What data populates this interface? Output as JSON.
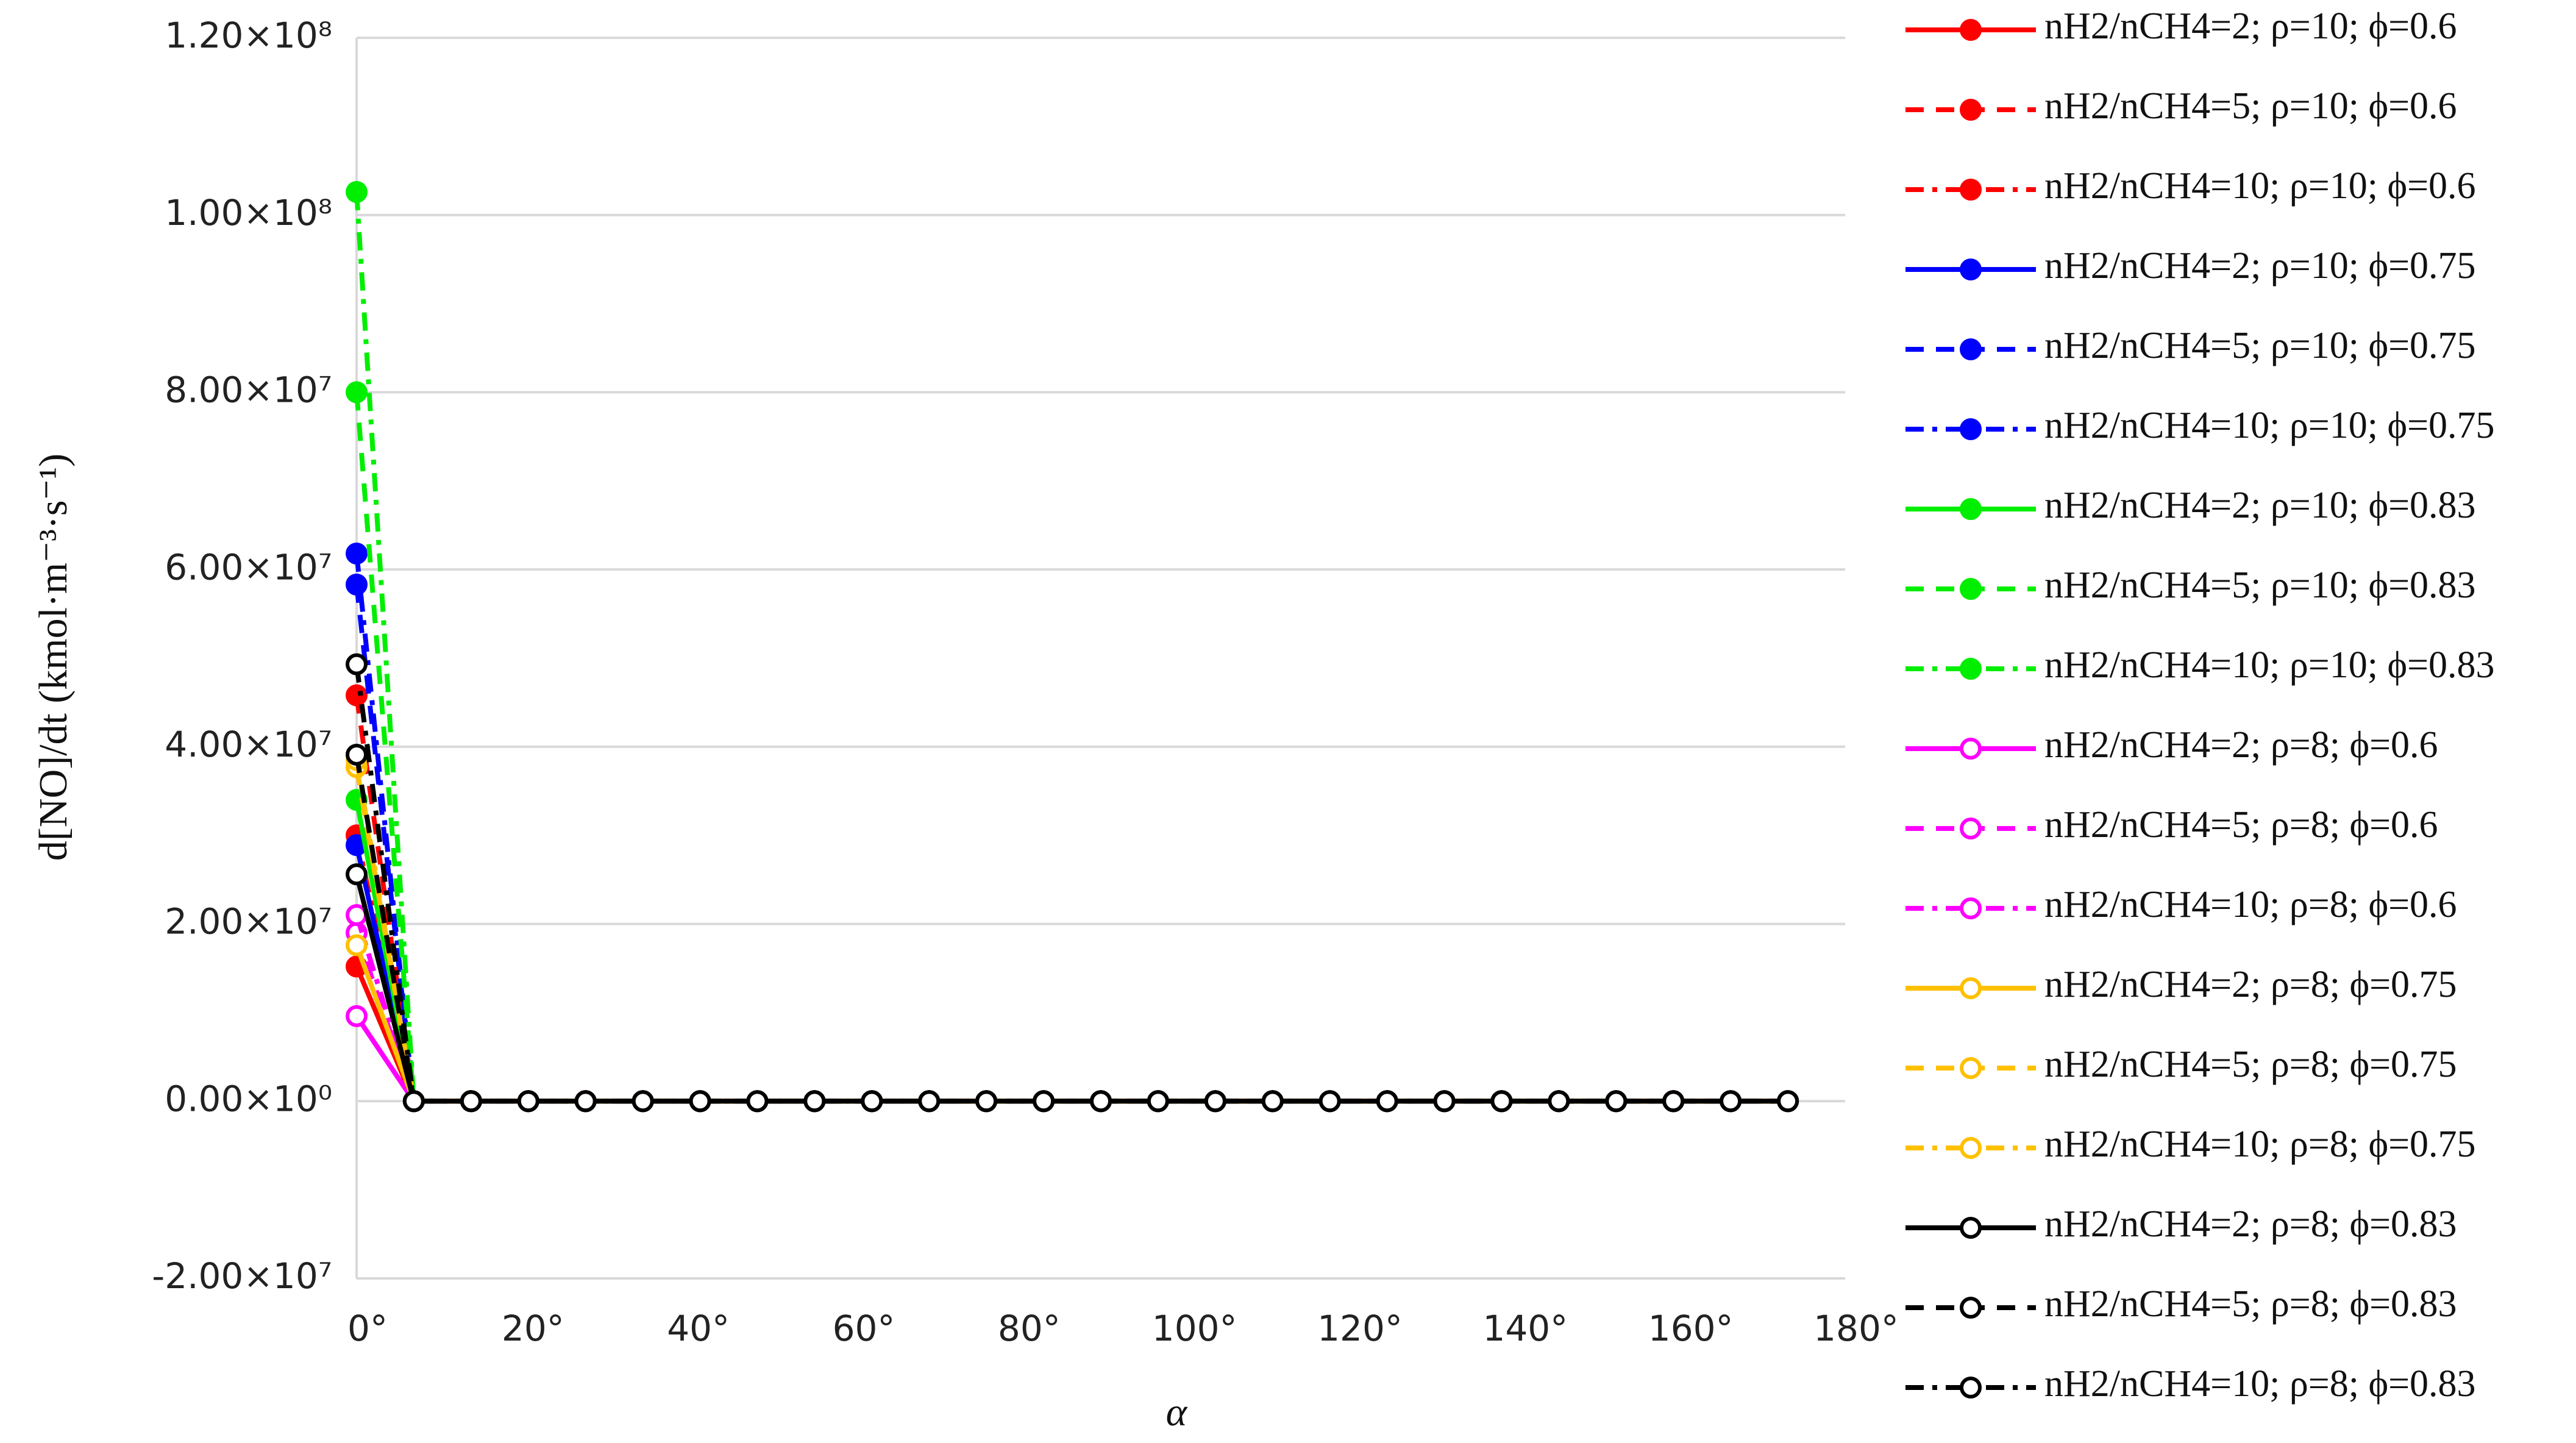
{
  "chart_data": {
    "type": "line",
    "x_label": "α",
    "y_label": "d[NO]/dt (kmol·m⁻³·s⁻¹)",
    "x": [
      0,
      6.92,
      13.85,
      20.77,
      27.69,
      34.62,
      41.54,
      48.46,
      55.38,
      62.31,
      69.23,
      76.15,
      83.08,
      90,
      96.92,
      103.85,
      110.77,
      117.69,
      124.62,
      131.54,
      138.46,
      145.38,
      152.31,
      159.23,
      166.15,
      173.08
    ],
    "xlim": [
      0,
      180
    ],
    "xticks": [
      {
        "value": 0,
        "label": "0°"
      },
      {
        "value": 20,
        "label": "20°"
      },
      {
        "value": 40,
        "label": "40°"
      },
      {
        "value": 60,
        "label": "60°"
      },
      {
        "value": 80,
        "label": "80°"
      },
      {
        "value": 100,
        "label": "100°"
      },
      {
        "value": 120,
        "label": "120°"
      },
      {
        "value": 140,
        "label": "140°"
      },
      {
        "value": 160,
        "label": "160°"
      },
      {
        "value": 180,
        "label": "180°"
      }
    ],
    "ylim": [
      -20000000,
      120000000
    ],
    "yticks": [
      {
        "value": -20000000,
        "label": "-2.00×10⁷"
      },
      {
        "value": 0,
        "label": "0.00×10⁰"
      },
      {
        "value": 20000000,
        "label": "2.00×10⁷"
      },
      {
        "value": 40000000,
        "label": "4.00×10⁷"
      },
      {
        "value": 60000000,
        "label": "6.00×10⁷"
      },
      {
        "value": 80000000,
        "label": "8.00×10⁷"
      },
      {
        "value": 100000000,
        "label": "1.00×10⁸"
      },
      {
        "value": 120000000,
        "label": "1.20×10⁸"
      }
    ],
    "grid": true,
    "legend": "right",
    "series": [
      {
        "name": "nH2/nCH4=2; ρ=10; ϕ=0.6",
        "color": "#ff0000",
        "dash": "solid",
        "marker": "filled",
        "values": [
          15200000,
          0,
          0,
          0,
          0,
          0,
          0,
          0,
          0,
          0,
          0,
          0,
          0,
          0,
          0,
          0,
          0,
          0,
          0,
          0,
          0,
          0,
          0,
          0,
          0,
          0
        ]
      },
      {
        "name": "nH2/nCH4=5; ρ=10; ϕ=0.6",
        "color": "#ff0000",
        "dash": "dash",
        "marker": "filled",
        "values": [
          45800000,
          0,
          0,
          0,
          0,
          0,
          0,
          0,
          0,
          0,
          0,
          0,
          0,
          0,
          0,
          0,
          0,
          0,
          0,
          0,
          0,
          0,
          0,
          0,
          0,
          0
        ]
      },
      {
        "name": "nH2/nCH4=10; ρ=10; ϕ=0.6",
        "color": "#ff0000",
        "dash": "dashdot",
        "marker": "filled",
        "values": [
          30000000,
          0,
          0,
          0,
          0,
          0,
          0,
          0,
          0,
          0,
          0,
          0,
          0,
          0,
          0,
          0,
          0,
          0,
          0,
          0,
          0,
          0,
          0,
          0,
          0,
          0
        ]
      },
      {
        "name": "nH2/nCH4=2; ρ=10; ϕ=0.75",
        "color": "#0000ff",
        "dash": "solid",
        "marker": "filled",
        "values": [
          28900000,
          0,
          0,
          0,
          0,
          0,
          0,
          0,
          0,
          0,
          0,
          0,
          0,
          0,
          0,
          0,
          0,
          0,
          0,
          0,
          0,
          0,
          0,
          0,
          0,
          0
        ]
      },
      {
        "name": "nH2/nCH4=5; ρ=10; ϕ=0.75",
        "color": "#0000ff",
        "dash": "dash",
        "marker": "filled",
        "values": [
          58300000,
          0,
          0,
          0,
          0,
          0,
          0,
          0,
          0,
          0,
          0,
          0,
          0,
          0,
          0,
          0,
          0,
          0,
          0,
          0,
          0,
          0,
          0,
          0,
          0,
          0
        ]
      },
      {
        "name": "nH2/nCH4=10; ρ=10; ϕ=0.75",
        "color": "#0000ff",
        "dash": "dashdot",
        "marker": "filled",
        "values": [
          61800000,
          0,
          0,
          0,
          0,
          0,
          0,
          0,
          0,
          0,
          0,
          0,
          0,
          0,
          0,
          0,
          0,
          0,
          0,
          0,
          0,
          0,
          0,
          0,
          0,
          0
        ]
      },
      {
        "name": "nH2/nCH4=2; ρ=10; ϕ=0.83",
        "color": "#00ee00",
        "dash": "solid",
        "marker": "filled",
        "values": [
          34000000,
          0,
          0,
          0,
          0,
          0,
          0,
          0,
          0,
          0,
          0,
          0,
          0,
          0,
          0,
          0,
          0,
          0,
          0,
          0,
          0,
          0,
          0,
          0,
          0,
          0
        ]
      },
      {
        "name": "nH2/nCH4=5; ρ=10; ϕ=0.83",
        "color": "#00ee00",
        "dash": "dash",
        "marker": "filled",
        "values": [
          80000000,
          0,
          0,
          0,
          0,
          0,
          0,
          0,
          0,
          0,
          0,
          0,
          0,
          0,
          0,
          0,
          0,
          0,
          0,
          0,
          0,
          0,
          0,
          0,
          0,
          0
        ]
      },
      {
        "name": "nH2/nCH4=10; ρ=10; ϕ=0.83",
        "color": "#00ee00",
        "dash": "dashdot",
        "marker": "filled",
        "values": [
          102600000,
          0,
          0,
          0,
          0,
          0,
          0,
          0,
          0,
          0,
          0,
          0,
          0,
          0,
          0,
          0,
          0,
          0,
          0,
          0,
          0,
          0,
          0,
          0,
          0,
          0
        ]
      },
      {
        "name": "nH2/nCH4=2; ρ=8; ϕ=0.6",
        "color": "#ff00ff",
        "dash": "solid",
        "marker": "hollow",
        "values": [
          9600000,
          0,
          0,
          0,
          0,
          0,
          0,
          0,
          0,
          0,
          0,
          0,
          0,
          0,
          0,
          0,
          0,
          0,
          0,
          0,
          0,
          0,
          0,
          0,
          0,
          0
        ]
      },
      {
        "name": "nH2/nCH4=5; ρ=8; ϕ=0.6",
        "color": "#ff00ff",
        "dash": "dash",
        "marker": "hollow",
        "values": [
          19000000,
          0,
          0,
          0,
          0,
          0,
          0,
          0,
          0,
          0,
          0,
          0,
          0,
          0,
          0,
          0,
          0,
          0,
          0,
          0,
          0,
          0,
          0,
          0,
          0,
          0
        ]
      },
      {
        "name": "nH2/nCH4=10; ρ=8; ϕ=0.6",
        "color": "#ff00ff",
        "dash": "dashdot",
        "marker": "hollow",
        "values": [
          21000000,
          0,
          0,
          0,
          0,
          0,
          0,
          0,
          0,
          0,
          0,
          0,
          0,
          0,
          0,
          0,
          0,
          0,
          0,
          0,
          0,
          0,
          0,
          0,
          0,
          0
        ]
      },
      {
        "name": "nH2/nCH4=2; ρ=8; ϕ=0.75",
        "color": "#ffc000",
        "dash": "solid",
        "marker": "hollow",
        "values": [
          17600000,
          0,
          0,
          0,
          0,
          0,
          0,
          0,
          0,
          0,
          0,
          0,
          0,
          0,
          0,
          0,
          0,
          0,
          0,
          0,
          0,
          0,
          0,
          0,
          0,
          0
        ]
      },
      {
        "name": "nH2/nCH4=5; ρ=8; ϕ=0.75",
        "color": "#ffc000",
        "dash": "dash",
        "marker": "hollow",
        "values": [
          37700000,
          0,
          0,
          0,
          0,
          0,
          0,
          0,
          0,
          0,
          0,
          0,
          0,
          0,
          0,
          0,
          0,
          0,
          0,
          0,
          0,
          0,
          0,
          0,
          0,
          0
        ]
      },
      {
        "name": "nH2/nCH4=10; ρ=8; ϕ=0.75",
        "color": "#ffc000",
        "dash": "dashdot",
        "marker": "hollow",
        "values": [
          38500000,
          0,
          0,
          0,
          0,
          0,
          0,
          0,
          0,
          0,
          0,
          0,
          0,
          0,
          0,
          0,
          0,
          0,
          0,
          0,
          0,
          0,
          0,
          0,
          0,
          0
        ]
      },
      {
        "name": "nH2/nCH4=2; ρ=8; ϕ=0.83",
        "color": "#000000",
        "dash": "solid",
        "marker": "hollow",
        "values": [
          25600000,
          0,
          0,
          0,
          0,
          0,
          0,
          0,
          0,
          0,
          0,
          0,
          0,
          0,
          0,
          0,
          0,
          0,
          0,
          0,
          0,
          0,
          0,
          0,
          0,
          0
        ]
      },
      {
        "name": "nH2/nCH4=5; ρ=8; ϕ=0.83",
        "color": "#000000",
        "dash": "dash",
        "marker": "hollow",
        "values": [
          39100000,
          0,
          0,
          0,
          0,
          0,
          0,
          0,
          0,
          0,
          0,
          0,
          0,
          0,
          0,
          0,
          0,
          0,
          0,
          0,
          0,
          0,
          0,
          0,
          0,
          0
        ]
      },
      {
        "name": "nH2/nCH4=10; ρ=8; ϕ=0.83",
        "color": "#000000",
        "dash": "dashdot",
        "marker": "hollow",
        "values": [
          49300000,
          0,
          0,
          0,
          0,
          0,
          0,
          0,
          0,
          0,
          0,
          0,
          0,
          0,
          0,
          0,
          0,
          0,
          0,
          0,
          0,
          0,
          0,
          0,
          0,
          0
        ]
      }
    ]
  }
}
